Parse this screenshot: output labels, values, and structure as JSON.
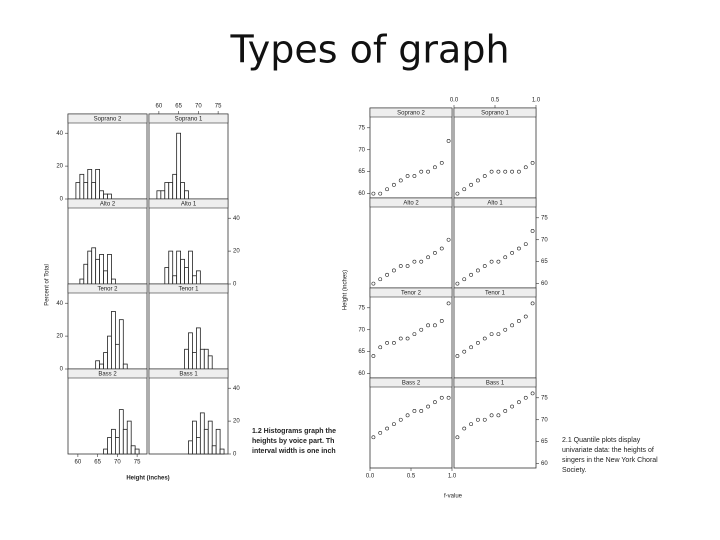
{
  "title": "Types of graph",
  "figure1": {
    "ylabel": "Percent of Total",
    "xlabel": "Height (inches)",
    "ylim": [
      0,
      45
    ],
    "yticks": [
      0,
      20,
      40
    ],
    "xlim": [
      57.5,
      77.5
    ],
    "xticks": [
      60,
      65,
      70,
      75
    ],
    "bins": [
      59.5,
      60.5,
      61.5,
      62.5,
      63.5,
      64.5,
      65.5,
      66.5,
      67.5,
      68.5,
      69.5,
      70.5,
      71.5,
      72.5,
      73.5,
      74.5,
      75.5,
      76.5
    ],
    "panels": [
      {
        "name": "Soprano 2",
        "values": [
          10,
          15,
          10,
          18,
          10,
          18,
          5,
          3,
          3,
          0,
          0,
          0,
          0,
          0,
          0,
          0,
          0
        ]
      },
      {
        "name": "Soprano 1",
        "values": [
          5,
          5,
          10,
          10,
          15,
          40,
          10,
          5,
          0,
          0,
          0,
          0,
          0,
          0,
          0,
          0,
          0
        ]
      },
      {
        "name": "Alto 2",
        "values": [
          0,
          3,
          12,
          20,
          22,
          15,
          18,
          8,
          18,
          3,
          0,
          0,
          0,
          0,
          0,
          0,
          0
        ]
      },
      {
        "name": "Alto 1",
        "values": [
          0,
          0,
          10,
          20,
          5,
          20,
          15,
          10,
          20,
          5,
          8,
          0,
          0,
          0,
          0,
          0,
          0
        ]
      },
      {
        "name": "Tenor 2",
        "values": [
          0,
          0,
          0,
          0,
          0,
          5,
          3,
          10,
          20,
          35,
          15,
          30,
          3,
          0,
          0,
          0,
          0
        ]
      },
      {
        "name": "Tenor 1",
        "values": [
          0,
          0,
          0,
          0,
          0,
          0,
          0,
          12,
          22,
          10,
          25,
          12,
          12,
          8,
          0,
          0,
          0
        ]
      },
      {
        "name": "Bass 2",
        "values": [
          0,
          0,
          0,
          0,
          0,
          0,
          0,
          3,
          10,
          15,
          10,
          27,
          15,
          20,
          5,
          3,
          0
        ]
      },
      {
        "name": "Bass 1",
        "values": [
          0,
          0,
          0,
          0,
          0,
          0,
          0,
          0,
          8,
          20,
          10,
          25,
          15,
          20,
          5,
          15,
          3
        ]
      }
    ],
    "caption": [
      "1.2 Histograms graph the",
      "heights by voice part. Th",
      "interval width is one inch"
    ]
  },
  "figure2": {
    "ylabel": "Height (inches)",
    "xlabel": "f-value",
    "ylim": [
      59,
      77
    ],
    "yticks": [
      60,
      65,
      70,
      75
    ],
    "xlim": [
      0,
      1
    ],
    "xticks": [
      {
        "value": 0,
        "label": "0.0"
      },
      {
        "value": 0.5,
        "label": "0.5"
      },
      {
        "value": 1,
        "label": "1.0"
      }
    ],
    "panels": [
      {
        "name": "Soprano 2",
        "values": [
          60,
          60,
          61,
          62,
          63,
          64,
          64,
          65,
          65,
          66,
          67,
          72
        ]
      },
      {
        "name": "Soprano 1",
        "values": [
          60,
          61,
          62,
          63,
          64,
          65,
          65,
          65,
          65,
          65,
          66,
          67
        ]
      },
      {
        "name": "Alto 2",
        "values": [
          60,
          61,
          62,
          63,
          64,
          64,
          65,
          65,
          66,
          67,
          68,
          70
        ]
      },
      {
        "name": "Alto 1",
        "values": [
          60,
          61,
          62,
          63,
          64,
          65,
          65,
          66,
          67,
          68,
          69,
          72
        ]
      },
      {
        "name": "Tenor 2",
        "values": [
          64,
          66,
          67,
          67,
          68,
          68,
          69,
          70,
          71,
          71,
          72,
          76
        ]
      },
      {
        "name": "Tenor 1",
        "values": [
          64,
          65,
          66,
          67,
          68,
          69,
          69,
          70,
          71,
          72,
          73,
          76
        ]
      },
      {
        "name": "Bass 2",
        "values": [
          66,
          67,
          68,
          69,
          70,
          71,
          72,
          72,
          73,
          74,
          75,
          75
        ]
      },
      {
        "name": "Bass 1",
        "values": [
          66,
          68,
          69,
          70,
          70,
          71,
          71,
          72,
          73,
          74,
          75,
          76
        ]
      }
    ],
    "caption": [
      "2.1  Quantile plots display",
      "univariate data: the heights of",
      "singers in the New York Choral",
      "Society."
    ]
  }
}
